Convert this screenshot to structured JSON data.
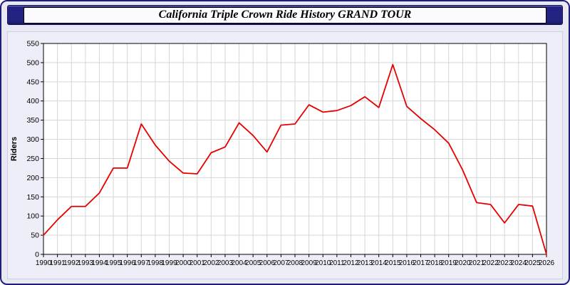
{
  "header": {
    "title": "California Triple Crown Ride History GRAND TOUR"
  },
  "chart_data": {
    "type": "line",
    "title": "California Triple Crown Ride History GRAND TOUR",
    "xlabel": "",
    "ylabel": "Riders",
    "x": [
      1990,
      1991,
      1992,
      1993,
      1994,
      1995,
      1996,
      1997,
      1998,
      1999,
      2000,
      2001,
      2002,
      2003,
      2004,
      2005,
      2006,
      2007,
      2008,
      2009,
      2010,
      2011,
      2012,
      2013,
      2014,
      2015,
      2016,
      2017,
      2018,
      2019,
      2020,
      2021,
      2022,
      2023,
      2024,
      2025,
      2026
    ],
    "values": [
      50,
      90,
      125,
      125,
      160,
      225,
      225,
      340,
      285,
      243,
      212,
      210,
      265,
      280,
      343,
      310,
      267,
      337,
      340,
      390,
      371,
      375,
      388,
      411,
      383,
      495,
      386,
      354,
      325,
      290,
      220,
      135,
      130,
      82,
      130,
      126,
      0
    ],
    "ylim": [
      0,
      550
    ],
    "ytick_step": 50,
    "grid": true,
    "legend": "none",
    "line_color": "#e60000"
  },
  "colors": {
    "page_background": "#e9e9f6",
    "header_background": "#232384",
    "plot_background": "#ffffff",
    "grid_line": "#d6d6d6",
    "axis_line": "#000000",
    "line": "#e60000",
    "text": "#000000"
  }
}
